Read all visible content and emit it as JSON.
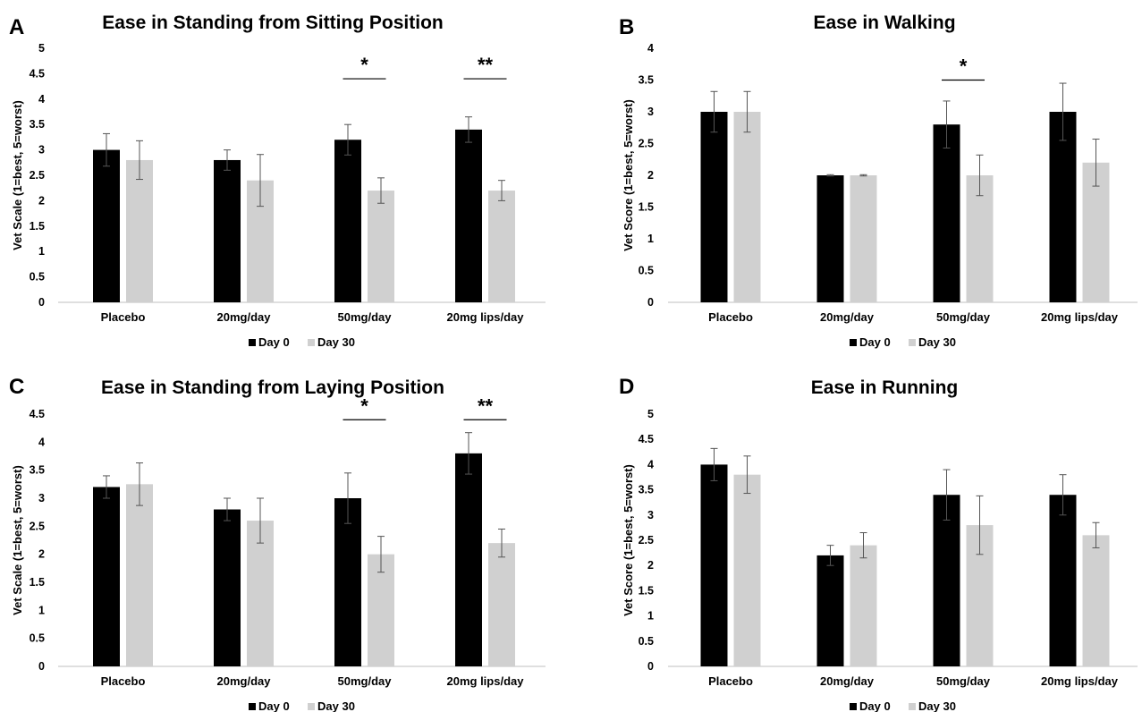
{
  "figure": {
    "colors": {
      "day0": "#000000",
      "day30": "#d0d0d0",
      "error_bar": "#555555",
      "axis": "#bfbfbf"
    }
  },
  "chart_data": [
    {
      "panel": "A",
      "type": "bar",
      "title": "Ease in Standing from Sitting Position",
      "ylabel": "Vet Scale (1=best, 5=worst)",
      "xlabel": "",
      "categories": [
        "Placebo",
        "20mg/day",
        "50mg/day",
        "20mg lips/day"
      ],
      "ylim": [
        0,
        5
      ],
      "yticks": [
        "0",
        "0.5",
        "1",
        "1.5",
        "2",
        "2.5",
        "3",
        "3.5",
        "4",
        "4.5",
        "5"
      ],
      "grid": false,
      "legend_position": "bottom",
      "series": [
        {
          "name": "Day 0",
          "values": [
            3.0,
            2.8,
            3.2,
            3.4
          ],
          "error": [
            0.32,
            0.2,
            0.3,
            0.25
          ]
        },
        {
          "name": "Day 30",
          "values": [
            2.8,
            2.4,
            2.2,
            2.2
          ],
          "error": [
            0.38,
            0.51,
            0.25,
            0.2
          ]
        }
      ],
      "annotations": [
        {
          "category_index": 2,
          "text": "*",
          "y": 4.4
        },
        {
          "category_index": 3,
          "text": "**",
          "y": 4.4
        }
      ]
    },
    {
      "panel": "B",
      "type": "bar",
      "title": "Ease in Walking",
      "ylabel": "Vet Score (1=best, 5=worst)",
      "xlabel": "",
      "categories": [
        "Placebo",
        "20mg/day",
        "50mg/day",
        "20mg lips/day"
      ],
      "ylim": [
        0,
        4
      ],
      "yticks": [
        "0",
        "0.5",
        "1",
        "1.5",
        "2",
        "2.5",
        "3",
        "3.5",
        "4"
      ],
      "grid": false,
      "legend_position": "bottom",
      "series": [
        {
          "name": "Day 0",
          "values": [
            3.0,
            2.0,
            2.8,
            3.0
          ],
          "error": [
            0.32,
            0.01,
            0.37,
            0.45
          ]
        },
        {
          "name": "Day 30",
          "values": [
            3.0,
            2.0,
            2.0,
            2.2
          ],
          "error": [
            0.32,
            0.01,
            0.32,
            0.37
          ]
        }
      ],
      "annotations": [
        {
          "category_index": 2,
          "text": "*",
          "y": 3.5
        }
      ]
    },
    {
      "panel": "C",
      "type": "bar",
      "title": "Ease in Standing from Laying Position",
      "ylabel": "Vet Scale (1=best, 5=worst)",
      "xlabel": "",
      "categories": [
        "Placebo",
        "20mg/day",
        "50mg/day",
        "20mg lips/day"
      ],
      "ylim": [
        0,
        4.5
      ],
      "yticks": [
        "0",
        "0.5",
        "1",
        "1.5",
        "2",
        "2.5",
        "3",
        "3.5",
        "4",
        "4.5"
      ],
      "grid": false,
      "legend_position": "bottom",
      "series": [
        {
          "name": "Day 0",
          "values": [
            3.2,
            2.8,
            3.0,
            3.8
          ],
          "error": [
            0.2,
            0.2,
            0.45,
            0.37
          ]
        },
        {
          "name": "Day 30",
          "values": [
            3.25,
            2.6,
            2.0,
            2.2
          ],
          "error": [
            0.38,
            0.4,
            0.32,
            0.25
          ]
        }
      ],
      "annotations": [
        {
          "category_index": 2,
          "text": "*",
          "y": 4.4
        },
        {
          "category_index": 3,
          "text": "**",
          "y": 4.4
        }
      ]
    },
    {
      "panel": "D",
      "type": "bar",
      "title": "Ease in Running",
      "ylabel": "Vet Score (1=best, 5=worst)",
      "xlabel": "",
      "categories": [
        "Placebo",
        "20mg/day",
        "50mg/day",
        "20mg lips/day"
      ],
      "ylim": [
        0,
        5
      ],
      "yticks": [
        "0",
        "0.5",
        "1",
        "1.5",
        "2",
        "2.5",
        "3",
        "3.5",
        "4",
        "4.5",
        "5"
      ],
      "grid": false,
      "legend_position": "bottom",
      "series": [
        {
          "name": "Day 0",
          "values": [
            4.0,
            2.2,
            3.4,
            3.4
          ],
          "error": [
            0.32,
            0.2,
            0.5,
            0.4
          ]
        },
        {
          "name": "Day 30",
          "values": [
            3.8,
            2.4,
            2.8,
            2.6
          ],
          "error": [
            0.37,
            0.25,
            0.58,
            0.25
          ]
        }
      ],
      "annotations": []
    }
  ]
}
